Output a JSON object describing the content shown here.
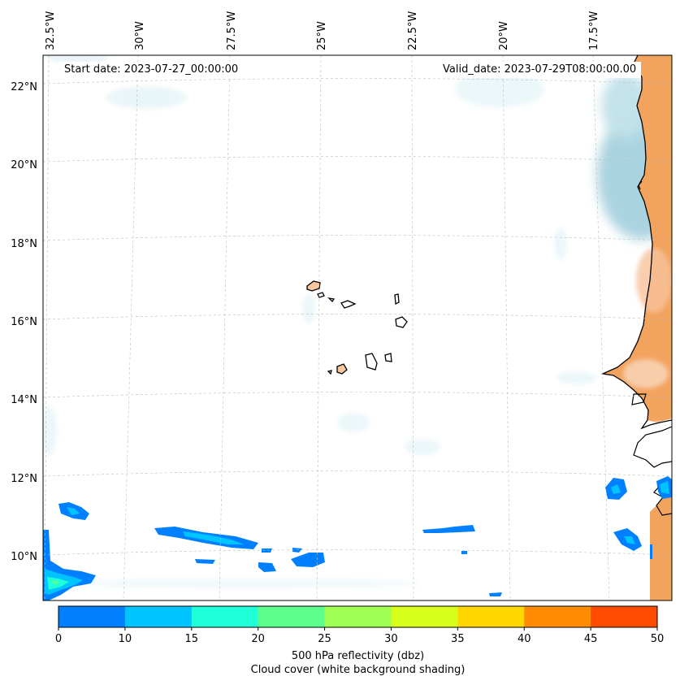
{
  "header": {
    "start_date": "Start date: 2023-07-27_00:00:00",
    "valid_date": "Valid_date: 2023-07-29T08:00:00.00"
  },
  "map": {
    "region": "Cape Verde and West African coast (Senegal, Mauritania)",
    "lon_labels": [
      "32.5°W",
      "30°W",
      "27.5°W",
      "25°W",
      "22.5°W",
      "20°W",
      "17.5°W"
    ],
    "lat_labels": [
      "22°N",
      "20°N",
      "18°N",
      "16°N",
      "14°N",
      "12°N",
      "10°N"
    ],
    "land_color": "#f2a35e",
    "sea_cloud_color": "#aad3e0",
    "coastline_color": "#000000"
  },
  "colorbar": {
    "label_line1": "500 hPa reflectivity (dbz)",
    "label_line2": "Cloud cover (white background shading)",
    "ticks": [
      "0",
      "10",
      "15",
      "20",
      "25",
      "30",
      "35",
      "40",
      "45",
      "50"
    ],
    "colors": [
      "#0080ff",
      "#00c4ff",
      "#1fffd8",
      "#5cff8c",
      "#9fff52",
      "#d8ff1c",
      "#ffd600",
      "#ff8c00",
      "#ff4c00"
    ]
  }
}
